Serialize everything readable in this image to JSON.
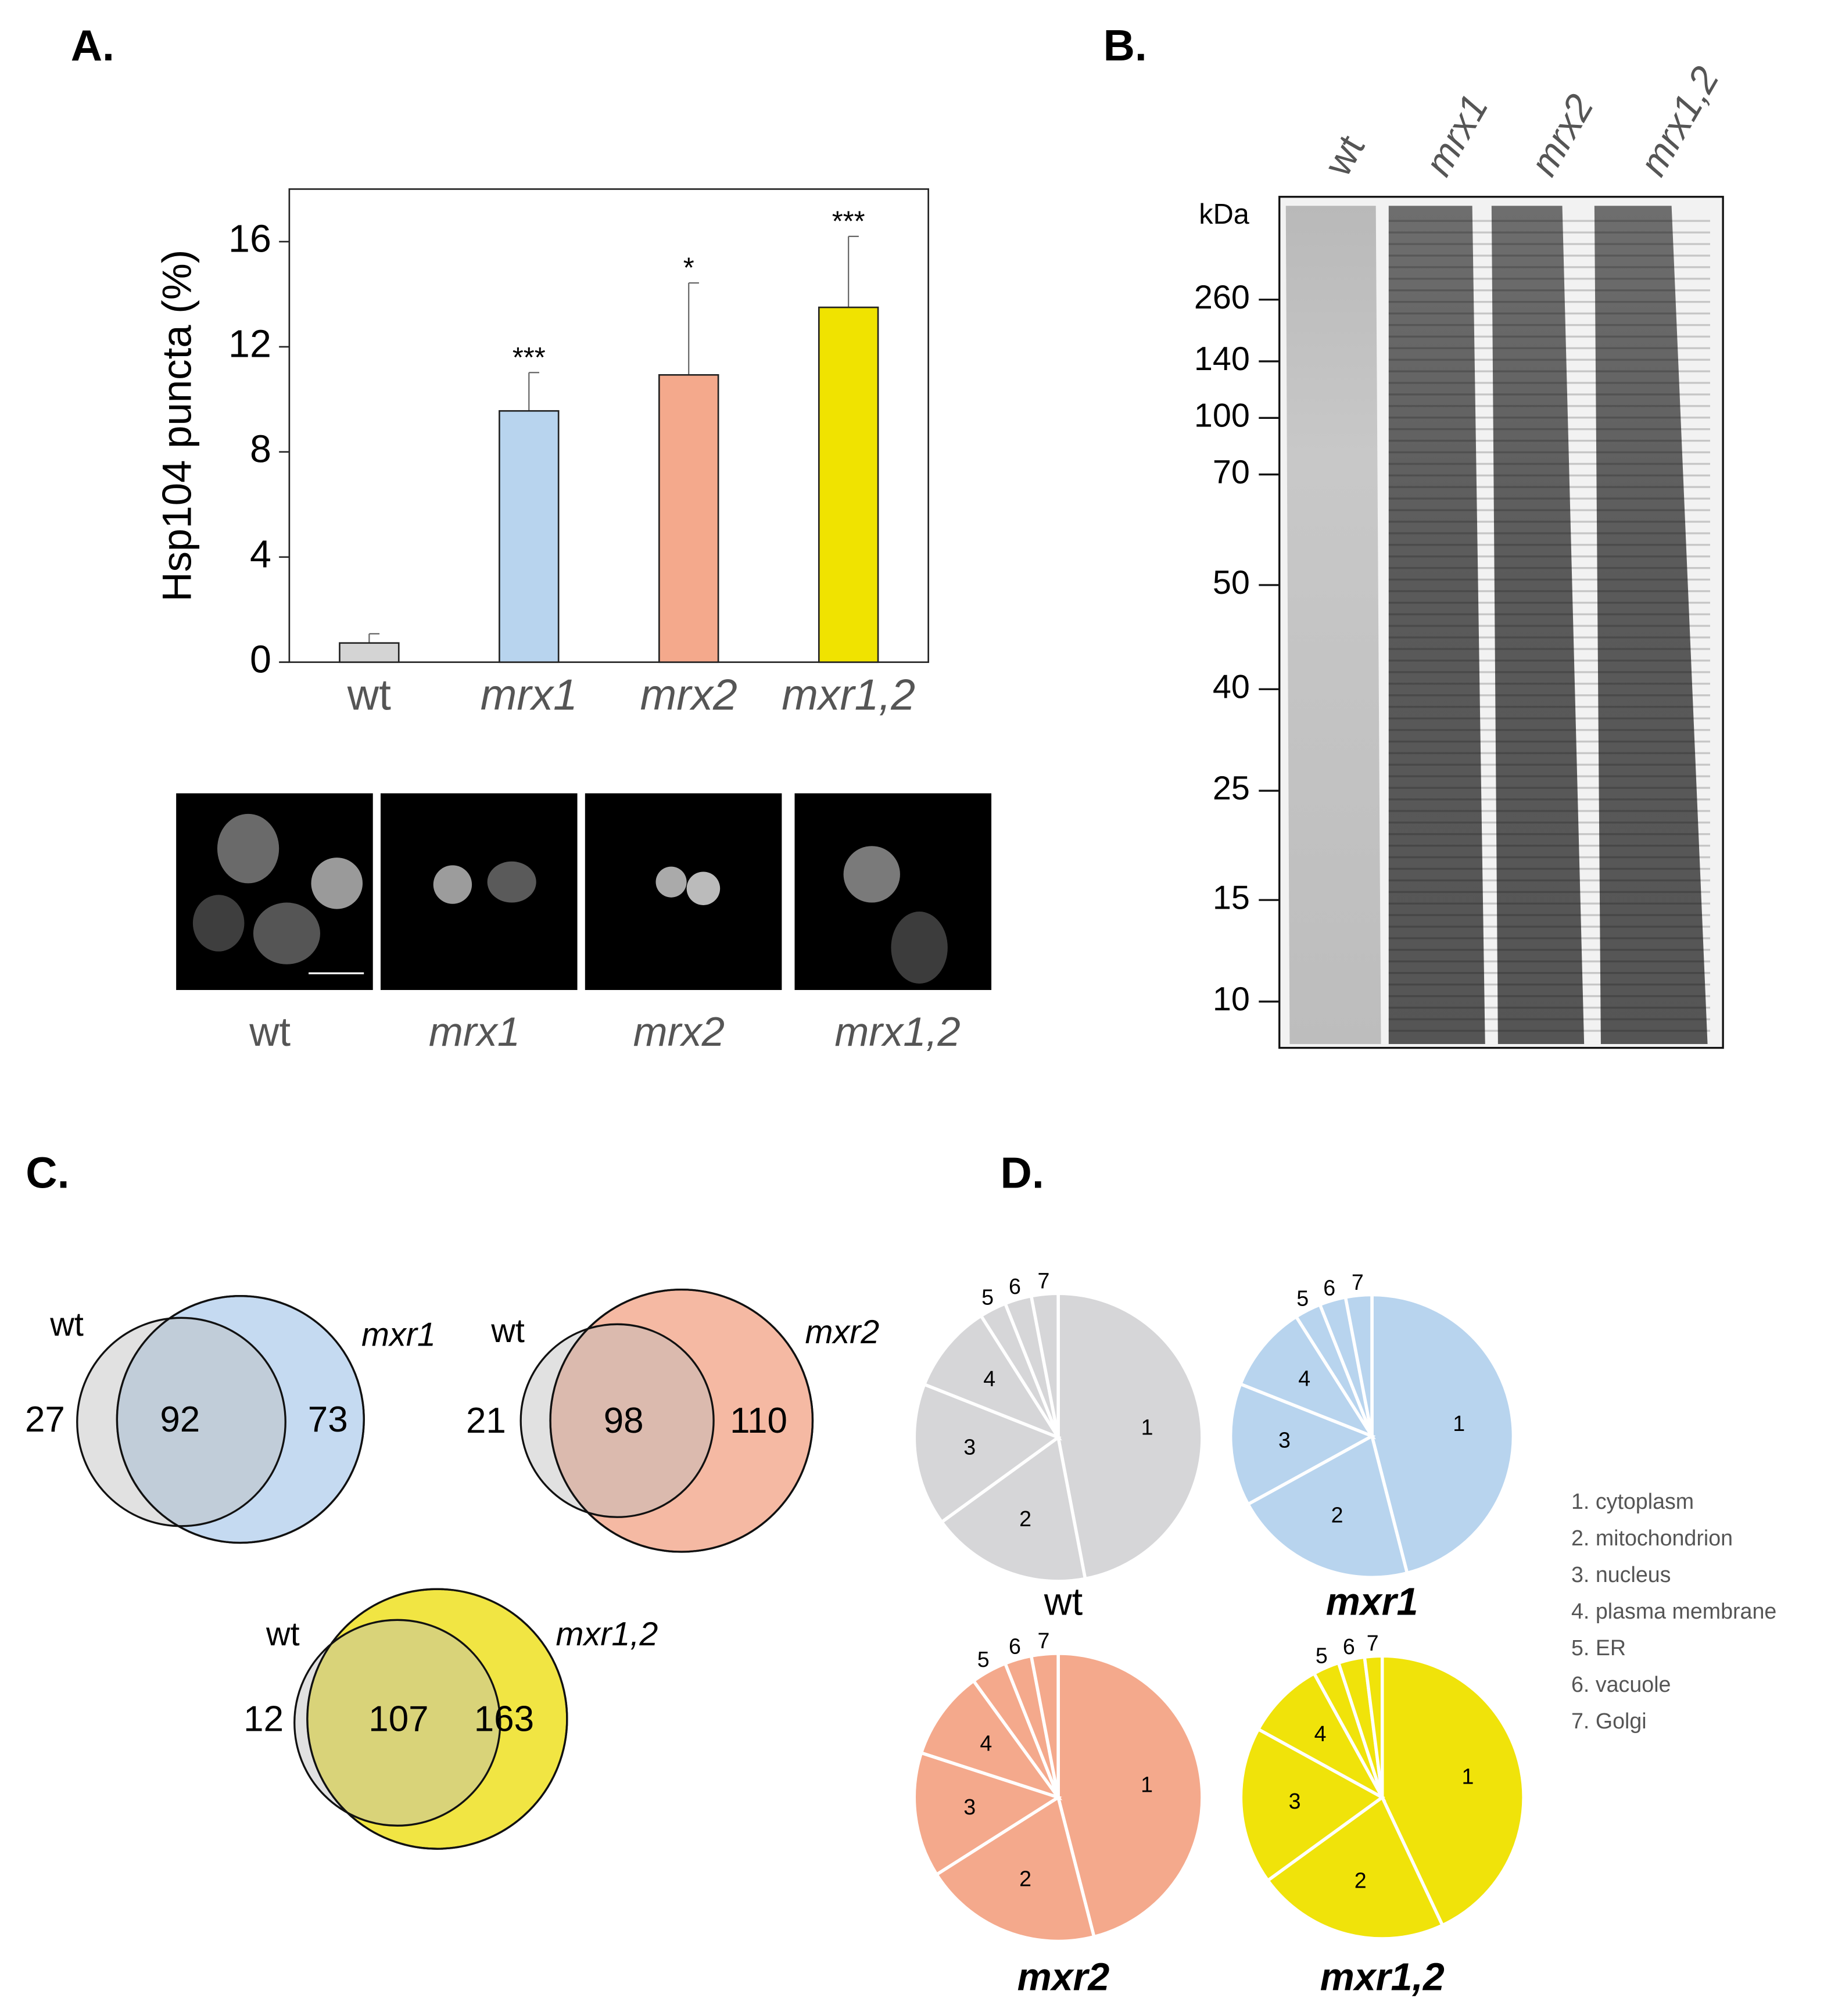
{
  "panels": [
    "A.",
    "B.",
    "C.",
    "D."
  ],
  "chart_data": [
    {
      "type": "bar",
      "ylabel": "Hsp104 puncta (%)",
      "categories": [
        "wt",
        "mrx1",
        "mrx2",
        "mxr1,2"
      ],
      "values": [
        0.73,
        9.56,
        10.93,
        13.5
      ],
      "errors": [
        0.35,
        1.46,
        3.5,
        2.7
      ],
      "annotations": [
        null,
        "***",
        "*",
        "***"
      ],
      "colors": [
        "#d4d4d4",
        "#b8d4ee",
        "#f4a98c",
        "#f0e300"
      ],
      "ylim": [
        0,
        18
      ],
      "yticks": [
        0,
        4,
        8,
        12,
        16
      ]
    },
    {
      "type": "venn",
      "sets": [
        "wt",
        "mxr1"
      ],
      "counts": [
        27,
        92,
        73
      ],
      "color": "#c5daf1"
    },
    {
      "type": "venn",
      "sets": [
        "wt",
        "mxr2"
      ],
      "counts": [
        21,
        98,
        110
      ],
      "color": "#f5b9a3"
    },
    {
      "type": "venn",
      "sets": [
        "wt",
        "mxr1,2"
      ],
      "counts": [
        12,
        107,
        163
      ],
      "color": "#f1e543"
    },
    {
      "type": "pie",
      "title": "wt",
      "categories": [
        "1",
        "2",
        "3",
        "4",
        "5",
        "6",
        "7"
      ],
      "values": [
        47,
        18,
        16,
        10,
        3,
        3,
        3
      ],
      "color": "#d6d6d8"
    },
    {
      "type": "pie",
      "title": "mxr1",
      "categories": [
        "1",
        "2",
        "3",
        "4",
        "5",
        "6",
        "7"
      ],
      "values": [
        46,
        21,
        14,
        10,
        3,
        3,
        3
      ],
      "color": "#b8d4ee"
    },
    {
      "type": "pie",
      "title": "mxr2",
      "categories": [
        "1",
        "2",
        "3",
        "4",
        "5",
        "6",
        "7"
      ],
      "values": [
        46,
        20,
        14,
        10,
        4,
        3,
        3
      ],
      "color": "#f4a98c"
    },
    {
      "type": "pie",
      "title": "mxr1,2",
      "categories": [
        "1",
        "2",
        "3",
        "4",
        "5",
        "6",
        "7"
      ],
      "values": [
        43,
        22,
        18,
        9,
        3,
        3,
        2
      ],
      "color": "#f0e30a"
    }
  ],
  "micrographs": {
    "labels": [
      "wt",
      "mrx1",
      "mrx2",
      "mrx1,2"
    ]
  },
  "gel": {
    "lanes": [
      "wt",
      "mrx1",
      "mrx2",
      "mrx1,2"
    ],
    "unit": "kDa",
    "markers": [
      260,
      140,
      100,
      70,
      50,
      40,
      25,
      15,
      10
    ]
  },
  "legend": [
    "1. cytoplasm",
    "2. mitochondrion",
    "3. nucleus",
    "4. plasma membrane",
    "5. ER",
    "6. vacuole",
    "7. Golgi"
  ]
}
